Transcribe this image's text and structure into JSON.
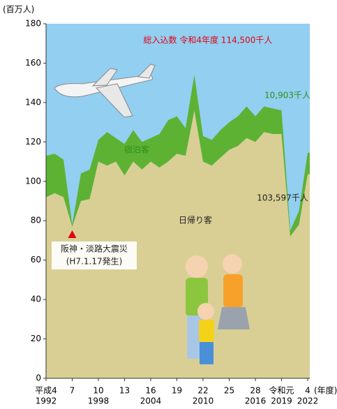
{
  "chart_data": {
    "type": "stacked_area",
    "y_label": "(百万人)",
    "x_unit": "(年度)",
    "x": [
      1992,
      1993,
      1994,
      1995,
      1996,
      1997,
      1998,
      1999,
      2000,
      2001,
      2002,
      2003,
      2004,
      2005,
      2006,
      2007,
      2008,
      2009,
      2010,
      2011,
      2012,
      2013,
      2014,
      2015,
      2016,
      2017,
      2018,
      2019,
      2020,
      2021,
      2022
    ],
    "series": [
      {
        "name": "日帰り客",
        "color": "#d9cf95",
        "values": [
          92,
          94,
          92,
          77,
          90,
          91,
          110,
          108,
          110,
          103,
          110,
          106,
          110,
          107,
          110,
          114,
          113,
          136,
          110,
          108,
          112,
          116,
          118,
          122,
          120,
          125,
          124,
          124,
          72,
          78,
          103.597
        ]
      },
      {
        "name": "宿泊客",
        "color": "#5db234",
        "values": [
          21,
          20,
          19,
          1,
          14,
          15,
          11,
          17,
          12,
          16,
          16,
          14,
          12,
          17,
          21,
          19,
          14,
          18,
          13,
          13,
          14,
          14,
          15,
          16,
          13,
          13,
          13,
          12,
          3,
          7,
          10.903
        ]
      }
    ],
    "ylim": [
      0,
      180
    ],
    "yticks": [
      0,
      20,
      40,
      60,
      80,
      100,
      120,
      140,
      160,
      180
    ],
    "xlim": [
      1992,
      2022
    ],
    "xticks": [
      {
        "value": 1992,
        "label": "平成4"
      },
      {
        "value": 1995,
        "label": "7"
      },
      {
        "value": 1998,
        "label": "10"
      },
      {
        "value": 2001,
        "label": "13"
      },
      {
        "value": 2004,
        "label": "16"
      },
      {
        "value": 2007,
        "label": "19"
      },
      {
        "value": 2010,
        "label": "22"
      },
      {
        "value": 2013,
        "label": "25"
      },
      {
        "value": 2016,
        "label": "28"
      },
      {
        "value": 2019,
        "label": "令和元"
      },
      {
        "value": 2022,
        "label": "4"
      }
    ],
    "xticks_year": [
      1992,
      1998,
      2004,
      2010,
      2016,
      2019,
      2022
    ],
    "background": "#92cff0",
    "annotations": [
      {
        "text": "総入込数 令和4年度 114,500千人"
      },
      {
        "text": "10,903千人"
      },
      {
        "text": "宿泊客"
      },
      {
        "text": "103,597千人"
      },
      {
        "text": "日帰り客"
      },
      {
        "text": "阪神・淡路大震災"
      },
      {
        "text": "(H7.1.17発生)"
      }
    ],
    "marker": {
      "x": 1995,
      "y": 73,
      "color": "#e60012"
    }
  }
}
